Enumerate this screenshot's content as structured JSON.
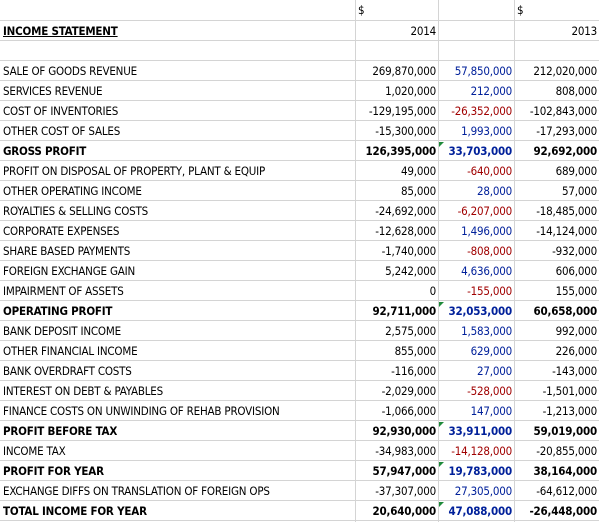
{
  "header": {
    "currency_2014": "$",
    "currency_2013": "$",
    "title": "INCOME STATEMENT",
    "year_2014": "2014",
    "year_2013": "2013"
  },
  "rows": [
    {
      "label": "SALE OF GOODS REVENUE",
      "v2014": "269,870,000",
      "change": "57,850,000",
      "v2013": "212,020,000",
      "bold": false,
      "change_color": "blue"
    },
    {
      "label": "SERVICES REVENUE",
      "v2014": "1,020,000",
      "change": "212,000",
      "v2013": "808,000",
      "bold": false,
      "change_color": "blue"
    },
    {
      "label": "COST OF INVENTORIES",
      "v2014": "-129,195,000",
      "change": "-26,352,000",
      "v2013": "-102,843,000",
      "bold": false,
      "change_color": "red"
    },
    {
      "label": "OTHER COST OF SALES",
      "v2014": "-15,300,000",
      "change": "1,993,000",
      "v2013": "-17,293,000",
      "bold": false,
      "change_color": "blue"
    },
    {
      "label": "GROSS PROFIT",
      "v2014": "126,395,000",
      "change": "33,703,000",
      "v2013": "92,692,000",
      "bold": true,
      "change_color": "blue"
    },
    {
      "label": "PROFIT ON DISPOSAL OF PROPERTY, PLANT & EQUIP",
      "v2014": "49,000",
      "change": "-640,000",
      "v2013": "689,000",
      "bold": false,
      "change_color": "red"
    },
    {
      "label": "OTHER OPERATING INCOME",
      "v2014": "85,000",
      "change": "28,000",
      "v2013": "57,000",
      "bold": false,
      "change_color": "blue"
    },
    {
      "label": "ROYALTIES & SELLING COSTS",
      "v2014": "-24,692,000",
      "change": "-6,207,000",
      "v2013": "-18,485,000",
      "bold": false,
      "change_color": "red"
    },
    {
      "label": "CORPORATE EXPENSES",
      "v2014": "-12,628,000",
      "change": "1,496,000",
      "v2013": "-14,124,000",
      "bold": false,
      "change_color": "blue"
    },
    {
      "label": "SHARE BASED PAYMENTS",
      "v2014": "-1,740,000",
      "change": "-808,000",
      "v2013": "-932,000",
      "bold": false,
      "change_color": "red"
    },
    {
      "label": "FOREIGN EXCHANGE GAIN",
      "v2014": "5,242,000",
      "change": "4,636,000",
      "v2013": "606,000",
      "bold": false,
      "change_color": "blue"
    },
    {
      "label": "IMPAIRMENT OF ASSETS",
      "v2014": "0",
      "change": "-155,000",
      "v2013": "155,000",
      "bold": false,
      "change_color": "red"
    },
    {
      "label": "OPERATING PROFIT",
      "v2014": "92,711,000",
      "change": "32,053,000",
      "v2013": "60,658,000",
      "bold": true,
      "change_color": "blue"
    },
    {
      "label": "BANK DEPOSIT INCOME",
      "v2014": "2,575,000",
      "change": "1,583,000",
      "v2013": "992,000",
      "bold": false,
      "change_color": "blue"
    },
    {
      "label": "OTHER FINANCIAL INCOME",
      "v2014": "855,000",
      "change": "629,000",
      "v2013": "226,000",
      "bold": false,
      "change_color": "blue"
    },
    {
      "label": "BANK OVERDRAFT COSTS",
      "v2014": "-116,000",
      "change": "27,000",
      "v2013": "-143,000",
      "bold": false,
      "change_color": "blue"
    },
    {
      "label": "INTEREST ON DEBT & PAYABLES",
      "v2014": "-2,029,000",
      "change": "-528,000",
      "v2013": "-1,501,000",
      "bold": false,
      "change_color": "red"
    },
    {
      "label": "FINANCE COSTS ON UNWINDING OF REHAB PROVISION",
      "v2014": "-1,066,000",
      "change": "147,000",
      "v2013": "-1,213,000",
      "bold": false,
      "change_color": "blue"
    },
    {
      "label": "PROFIT BEFORE TAX",
      "v2014": "92,930,000",
      "change": "33,911,000",
      "v2013": "59,019,000",
      "bold": true,
      "change_color": "blue"
    },
    {
      "label": "INCOME TAX",
      "v2014": "-34,983,000",
      "change": "-14,128,000",
      "v2013": "-20,855,000",
      "bold": false,
      "change_color": "red"
    },
    {
      "label": "PROFIT FOR YEAR",
      "v2014": "57,947,000",
      "change": "19,783,000",
      "v2013": "38,164,000",
      "bold": true,
      "change_color": "blue"
    },
    {
      "label": "EXCHANGE DIFFS ON TRANSLATION OF FOREIGN OPS",
      "v2014": "-37,307,000",
      "change": "27,305,000",
      "v2013": "-64,612,000",
      "bold": false,
      "change_color": "blue"
    },
    {
      "label": "TOTAL INCOME FOR YEAR",
      "v2014": "20,640,000",
      "change": "47,088,000",
      "v2013": "-26,448,000",
      "bold": true,
      "change_color": "blue"
    }
  ],
  "colors": {
    "positive_change": "#00209a",
    "negative_change": "#a00000",
    "gridline": "#d4d4d4",
    "comment_flag": "#1e8a3a"
  }
}
